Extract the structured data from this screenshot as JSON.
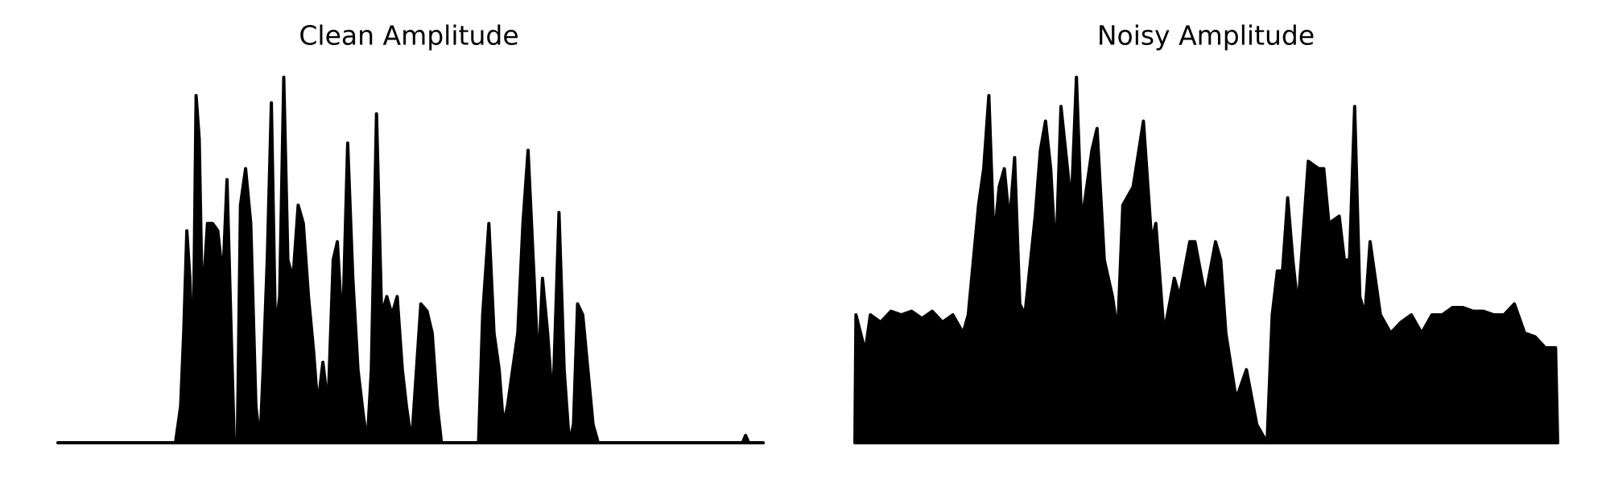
{
  "chart_data": [
    {
      "type": "area",
      "title": "Clean Amplitude",
      "color": "#000000",
      "xlim": [
        0,
        684
      ],
      "ylim": [
        0,
        1
      ],
      "x": [
        0,
        114,
        119,
        122,
        125,
        128,
        131,
        134,
        137,
        140,
        145,
        150,
        155,
        160,
        164,
        168,
        171,
        174,
        177,
        182,
        187,
        192,
        196,
        199,
        203,
        207,
        211,
        215,
        219,
        223,
        228,
        233,
        238,
        243,
        248,
        252,
        257,
        262,
        267,
        271,
        276,
        281,
        286,
        291,
        296,
        300,
        304,
        309,
        314,
        319,
        324,
        329,
        334,
        338,
        343,
        352,
        358,
        363,
        368,
        372,
        408,
        412,
        418,
        423,
        428,
        432,
        436,
        441,
        446,
        451,
        456,
        461,
        466,
        470,
        475,
        480,
        486,
        491,
        496,
        500,
        504,
        509,
        514,
        519,
        524,
        664,
        667,
        670,
        684
      ],
      "values": [
        0,
        0,
        0.1,
        0.3,
        0.58,
        0.45,
        0.2,
        0.95,
        0.83,
        0.37,
        0.6,
        0.6,
        0.58,
        0.45,
        0.72,
        0.3,
        0,
        0,
        0.65,
        0.75,
        0.6,
        0.1,
        0,
        0.2,
        0.5,
        0.93,
        0.3,
        0.4,
        1.0,
        0.5,
        0.45,
        0.65,
        0.6,
        0.4,
        0.25,
        0.1,
        0.22,
        0.1,
        0.5,
        0.55,
        0.3,
        0.82,
        0.45,
        0.2,
        0.08,
        0,
        0.2,
        0.9,
        0.35,
        0.4,
        0.35,
        0.4,
        0.2,
        0.1,
        0,
        0.38,
        0.36,
        0.3,
        0.1,
        0,
        0,
        0.35,
        0.6,
        0.3,
        0.2,
        0.05,
        0.1,
        0.2,
        0.3,
        0.6,
        0.8,
        0.5,
        0.2,
        0.45,
        0.3,
        0.1,
        0.63,
        0.2,
        0,
        0.05,
        0.38,
        0.35,
        0.2,
        0.05,
        0,
        0,
        0.02,
        0,
        0
      ]
    },
    {
      "type": "area",
      "title": "Noisy Amplitude",
      "color": "#000000",
      "xlim": [
        0,
        682
      ],
      "ylim": [
        0,
        1
      ],
      "x": [
        0,
        1,
        10,
        15,
        25,
        35,
        45,
        55,
        65,
        75,
        85,
        95,
        105,
        110,
        120,
        125,
        130,
        135,
        140,
        145,
        150,
        155,
        160,
        165,
        175,
        180,
        185,
        190,
        195,
        200,
        210,
        215,
        220,
        225,
        230,
        235,
        242,
        250,
        255,
        260,
        270,
        280,
        288,
        292,
        300,
        310,
        315,
        325,
        330,
        340,
        350,
        355,
        360,
        370,
        380,
        390,
        400,
        405,
        410,
        415,
        420,
        425,
        430,
        440,
        450,
        455,
        460,
        470,
        475,
        480,
        485,
        490,
        495,
        500,
        510,
        520,
        530,
        540,
        550,
        560,
        570,
        580,
        590,
        600,
        610,
        620,
        630,
        640,
        650,
        660,
        670,
        680,
        682
      ],
      "values": [
        0,
        0.35,
        0.25,
        0.35,
        0.33,
        0.36,
        0.35,
        0.36,
        0.34,
        0.36,
        0.33,
        0.35,
        0.3,
        0.35,
        0.65,
        0.75,
        0.95,
        0.55,
        0.7,
        0.75,
        0.6,
        0.78,
        0.38,
        0.35,
        0.62,
        0.8,
        0.88,
        0.75,
        0.5,
        0.92,
        0.65,
        1.0,
        0.6,
        0.7,
        0.8,
        0.86,
        0.5,
        0.4,
        0.3,
        0.65,
        0.7,
        0.88,
        0.55,
        0.6,
        0.3,
        0.45,
        0.4,
        0.55,
        0.55,
        0.4,
        0.55,
        0.5,
        0.3,
        0.12,
        0.2,
        0.05,
        0,
        0.35,
        0.47,
        0.47,
        0.67,
        0.5,
        0.37,
        0.77,
        0.75,
        0.75,
        0.6,
        0.62,
        0.5,
        0.5,
        0.92,
        0.4,
        0.35,
        0.55,
        0.35,
        0.3,
        0.33,
        0.35,
        0.3,
        0.35,
        0.35,
        0.37,
        0.37,
        0.36,
        0.36,
        0.35,
        0.35,
        0.38,
        0.3,
        0.29,
        0.26,
        0.26,
        0
      ]
    }
  ]
}
